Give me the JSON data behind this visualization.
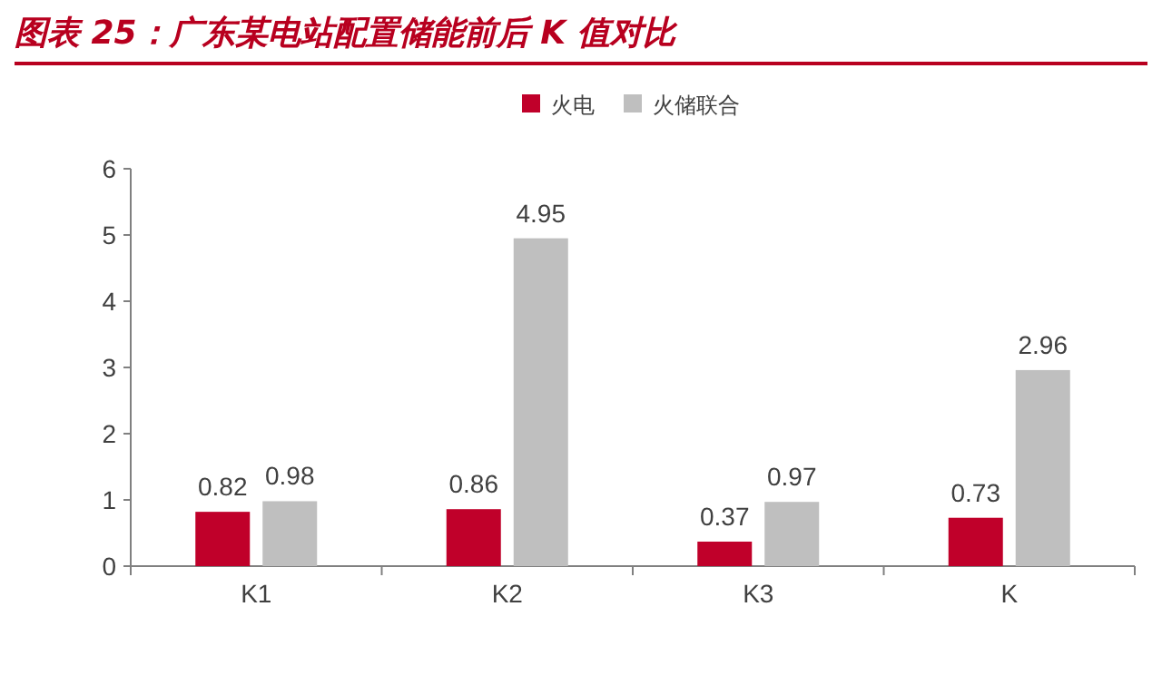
{
  "chart_data": {
    "type": "bar",
    "title": "图表 25：广东某电站配置储能前后 K 值对比",
    "categories": [
      "K1",
      "K2",
      "K3",
      "K"
    ],
    "series": [
      {
        "name": "火电",
        "color": "#c0002a",
        "values": [
          0.82,
          0.86,
          0.37,
          0.73
        ]
      },
      {
        "name": "火储联合",
        "color": "#bfbfbf",
        "values": [
          0.98,
          4.95,
          0.97,
          2.96
        ]
      }
    ],
    "ylim": [
      0,
      6
    ],
    "yticks": [
      0,
      1,
      2,
      3,
      4,
      5,
      6
    ],
    "data_labels": true,
    "legend": "top"
  }
}
